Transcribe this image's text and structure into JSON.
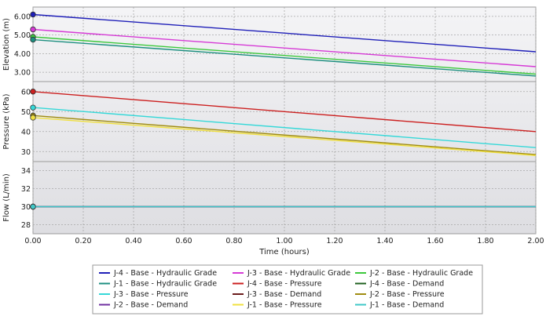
{
  "chart_data": {
    "type": "line",
    "xlabel": "Time (hours)",
    "xlim": [
      0,
      2
    ],
    "xticks": [
      "0.00",
      "0.20",
      "0.40",
      "0.60",
      "0.80",
      "1.00",
      "1.20",
      "1.40",
      "1.60",
      "1.80",
      "2.00"
    ],
    "grid": true,
    "legend_position": "bottom",
    "panels": [
      {
        "ylabel": "Elevation (m)",
        "ylim": [
          2.5,
          6.5
        ],
        "yticks": [
          "6.00",
          "5.00",
          "4.00",
          "3.00"
        ],
        "yticks_values": [
          6,
          5,
          4,
          3
        ],
        "series": [
          {
            "name": "J-4 - Base - Hydraulic Grade",
            "color": "#1f1fb8",
            "x": [
              0,
              2
            ],
            "y": [
              6.1,
              4.1
            ]
          },
          {
            "name": "J-3 - Base - Hydraulic Grade",
            "color": "#d63ad6",
            "x": [
              0,
              2
            ],
            "y": [
              5.3,
              3.3
            ]
          },
          {
            "name": "J-2 - Base - Hydraulic Grade",
            "color": "#3cc83c",
            "x": [
              0,
              2
            ],
            "y": [
              4.9,
              2.9
            ]
          },
          {
            "name": "J-1 - Base - Hydraulic Grade",
            "color": "#1e8f80",
            "x": [
              0,
              2
            ],
            "y": [
              4.75,
              2.8
            ]
          }
        ]
      },
      {
        "ylabel": "Pressure (kPa)",
        "ylim": [
          25,
          65
        ],
        "yticks": [
          "60",
          "50",
          "40",
          "30"
        ],
        "yticks_values": [
          60,
          50,
          40,
          30
        ],
        "series": [
          {
            "name": "J-4 - Base - Pressure",
            "color": "#cc2020",
            "x": [
              0,
              2
            ],
            "y": [
              60,
              40
            ]
          },
          {
            "name": "J-3 - Base - Pressure",
            "color": "#35d8d8",
            "x": [
              0,
              2
            ],
            "y": [
              52,
              32
            ]
          },
          {
            "name": "J-2 - Base - Pressure",
            "color": "#a08c10",
            "x": [
              0,
              2
            ],
            "y": [
              48,
              28.5
            ]
          },
          {
            "name": "J-1 - Base - Pressure",
            "color": "#f0e040",
            "x": [
              0,
              2
            ],
            "y": [
              47,
              28
            ]
          }
        ]
      },
      {
        "ylabel": "Flow (L/min)",
        "ylim": [
          27,
          35
        ],
        "yticks": [
          "34",
          "32",
          "30",
          "28"
        ],
        "yticks_values": [
          34,
          32,
          30,
          28
        ],
        "series": [
          {
            "name": "J-4 - Base - Demand",
            "color": "#206020",
            "x": [
              0,
              2
            ],
            "y": [
              30,
              30
            ]
          },
          {
            "name": "J-3 - Base - Demand",
            "color": "#6a1c1c",
            "x": [
              0,
              2
            ],
            "y": [
              30,
              30
            ]
          },
          {
            "name": "J-2 - Base - Demand",
            "color": "#7030a0",
            "x": [
              0,
              2
            ],
            "y": [
              30,
              30
            ]
          },
          {
            "name": "J-1 - Base - Demand",
            "color": "#40c8c8",
            "x": [
              0,
              2
            ],
            "y": [
              30,
              30
            ]
          }
        ]
      }
    ],
    "legend_order": [
      "J-4 - Base - Hydraulic Grade",
      "J-3 - Base - Hydraulic Grade",
      "J-2 - Base - Hydraulic Grade",
      "J-1 - Base - Hydraulic Grade",
      "J-4 - Base - Pressure",
      "J-4 - Base - Demand",
      "J-3 - Base - Pressure",
      "J-3 - Base - Demand",
      "J-2 - Base - Pressure",
      "J-2 - Base - Demand",
      "J-1 - Base - Pressure",
      "J-1 - Base - Demand"
    ]
  }
}
